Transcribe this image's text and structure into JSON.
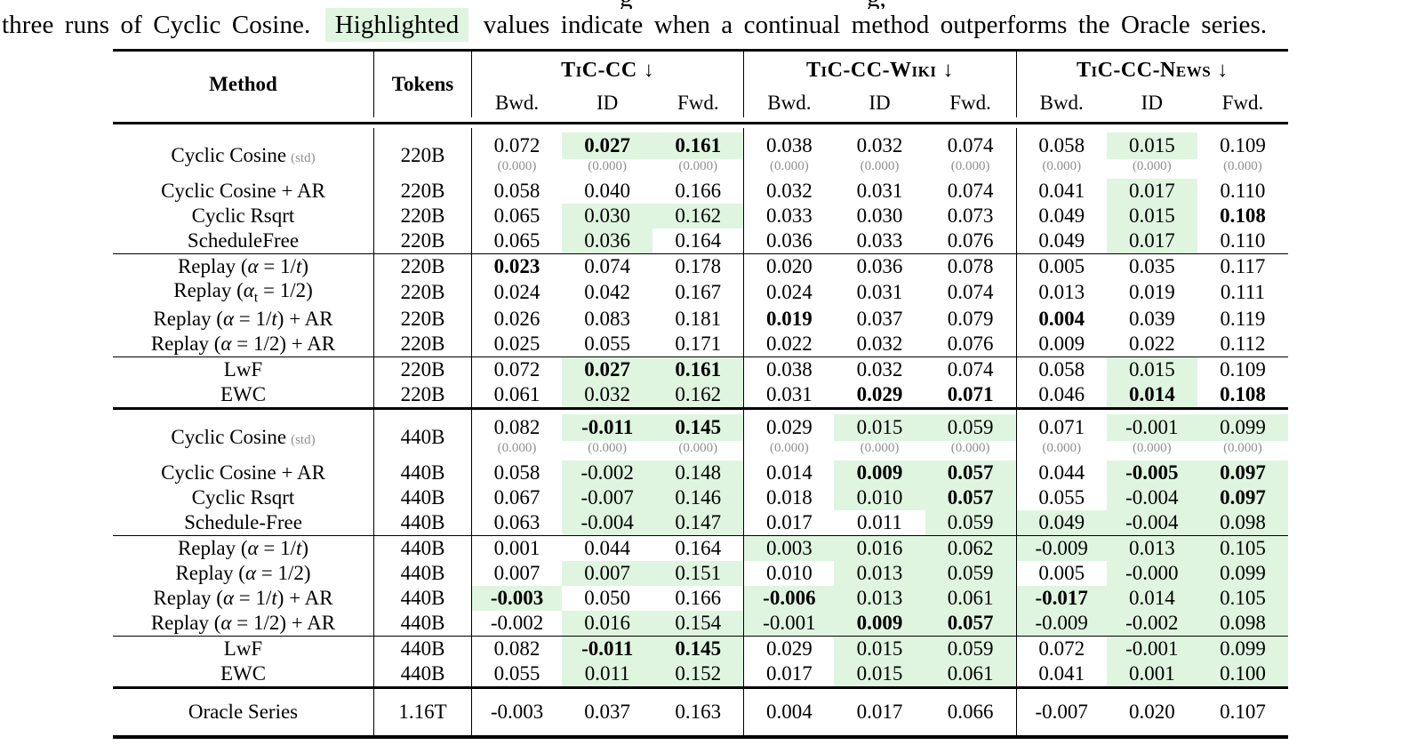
{
  "caption": {
    "clipped_fragments": [
      "g",
      "g,"
    ],
    "text_before": "three runs of Cyclic Cosine.",
    "highlight_word": "Highlighted",
    "text_after": "values indicate when a continual method outperforms the Oracle series."
  },
  "colors": {
    "highlight": "#dff5e0",
    "std_gray": "#8f8f8f"
  },
  "header": {
    "method": "Method",
    "tokens": "Tokens",
    "groups": [
      {
        "label": "TiC-CC",
        "arrow": "↓"
      },
      {
        "label": "TiC-CC-Wiki",
        "arrow": "↓"
      },
      {
        "label": "TiC-CC-News",
        "arrow": "↓"
      }
    ],
    "subcols": [
      "Bwd.",
      "ID",
      "Fwd.",
      "Bwd.",
      "ID",
      "Fwd.",
      "Bwd.",
      "ID",
      "Fwd."
    ]
  },
  "table": {
    "blocks": [
      {
        "rows": [
          {
            "method": "Cyclic Cosine",
            "note": "(std)",
            "tokens": "220B",
            "cells": [
              {
                "v": "0.072",
                "std": "(0.000)"
              },
              {
                "v": "0.027",
                "std": "(0.000)",
                "hl": true,
                "b": true
              },
              {
                "v": "0.161",
                "std": "(0.000)",
                "hl": true,
                "b": true
              },
              {
                "v": "0.038",
                "std": "(0.000)"
              },
              {
                "v": "0.032",
                "std": "(0.000)"
              },
              {
                "v": "0.074",
                "std": "(0.000)"
              },
              {
                "v": "0.058",
                "std": "(0.000)"
              },
              {
                "v": "0.015",
                "std": "(0.000)",
                "hl": true
              },
              {
                "v": "0.109",
                "std": "(0.000)"
              }
            ]
          },
          {
            "method": "Cyclic Cosine + AR",
            "tokens": "220B",
            "cells": [
              {
                "v": "0.058"
              },
              {
                "v": "0.040"
              },
              {
                "v": "0.166"
              },
              {
                "v": "0.032"
              },
              {
                "v": "0.031"
              },
              {
                "v": "0.074"
              },
              {
                "v": "0.041"
              },
              {
                "v": "0.017",
                "hl": true
              },
              {
                "v": "0.110"
              }
            ]
          },
          {
            "method": "Cyclic Rsqrt",
            "tokens": "220B",
            "cells": [
              {
                "v": "0.065"
              },
              {
                "v": "0.030",
                "hl": true
              },
              {
                "v": "0.162",
                "hl": true
              },
              {
                "v": "0.033"
              },
              {
                "v": "0.030"
              },
              {
                "v": "0.073"
              },
              {
                "v": "0.049"
              },
              {
                "v": "0.015",
                "hl": true
              },
              {
                "v": "0.108",
                "b": true
              }
            ]
          },
          {
            "method": "ScheduleFree",
            "tokens": "220B",
            "cells": [
              {
                "v": "0.065"
              },
              {
                "v": "0.036",
                "hl": true
              },
              {
                "v": "0.164"
              },
              {
                "v": "0.036"
              },
              {
                "v": "0.033"
              },
              {
                "v": "0.076"
              },
              {
                "v": "0.049"
              },
              {
                "v": "0.017",
                "hl": true
              },
              {
                "v": "0.110"
              }
            ]
          },
          {
            "method": "Replay (α = 1/t)",
            "tokens": "220B",
            "rule_above": true,
            "cells": [
              {
                "v": "0.023",
                "b": true
              },
              {
                "v": "0.074"
              },
              {
                "v": "0.178"
              },
              {
                "v": "0.020"
              },
              {
                "v": "0.036"
              },
              {
                "v": "0.078"
              },
              {
                "v": "0.005"
              },
              {
                "v": "0.035"
              },
              {
                "v": "0.117"
              }
            ]
          },
          {
            "method": "Replay (αₜ = 1/2)",
            "tokens": "220B",
            "cells": [
              {
                "v": "0.024"
              },
              {
                "v": "0.042"
              },
              {
                "v": "0.167"
              },
              {
                "v": "0.024"
              },
              {
                "v": "0.031"
              },
              {
                "v": "0.074"
              },
              {
                "v": "0.013"
              },
              {
                "v": "0.019"
              },
              {
                "v": "0.111"
              }
            ]
          },
          {
            "method": "Replay (α = 1/t) + AR",
            "tokens": "220B",
            "cells": [
              {
                "v": "0.026"
              },
              {
                "v": "0.083"
              },
              {
                "v": "0.181"
              },
              {
                "v": "0.019",
                "b": true
              },
              {
                "v": "0.037"
              },
              {
                "v": "0.079"
              },
              {
                "v": "0.004",
                "b": true
              },
              {
                "v": "0.039"
              },
              {
                "v": "0.119"
              }
            ]
          },
          {
            "method": "Replay (α = 1/2) + AR",
            "tokens": "220B",
            "cells": [
              {
                "v": "0.025"
              },
              {
                "v": "0.055"
              },
              {
                "v": "0.171"
              },
              {
                "v": "0.022"
              },
              {
                "v": "0.032"
              },
              {
                "v": "0.076"
              },
              {
                "v": "0.009"
              },
              {
                "v": "0.022"
              },
              {
                "v": "0.112"
              }
            ]
          },
          {
            "method": "LwF",
            "tokens": "220B",
            "rule_above": true,
            "cells": [
              {
                "v": "0.072"
              },
              {
                "v": "0.027",
                "hl": true,
                "b": true
              },
              {
                "v": "0.161",
                "hl": true,
                "b": true
              },
              {
                "v": "0.038"
              },
              {
                "v": "0.032"
              },
              {
                "v": "0.074"
              },
              {
                "v": "0.058"
              },
              {
                "v": "0.015",
                "hl": true
              },
              {
                "v": "0.109"
              }
            ]
          },
          {
            "method": "EWC",
            "tokens": "220B",
            "cells": [
              {
                "v": "0.061"
              },
              {
                "v": "0.032",
                "hl": true
              },
              {
                "v": "0.162",
                "hl": true
              },
              {
                "v": "0.031"
              },
              {
                "v": "0.029",
                "b": true
              },
              {
                "v": "0.071",
                "b": true
              },
              {
                "v": "0.046"
              },
              {
                "v": "0.014",
                "hl": true,
                "b": true
              },
              {
                "v": "0.108",
                "b": true
              }
            ]
          }
        ]
      },
      {
        "rows": [
          {
            "method": "Cyclic Cosine",
            "note": "(std)",
            "tokens": "440B",
            "cells": [
              {
                "v": "0.082",
                "std": "(0.000)"
              },
              {
                "v": "-0.011",
                "std": "(0.000)",
                "hl": true,
                "b": true
              },
              {
                "v": "0.145",
                "std": "(0.000)",
                "hl": true,
                "b": true
              },
              {
                "v": "0.029",
                "std": "(0.000)"
              },
              {
                "v": "0.015",
                "std": "(0.000)",
                "hl": true
              },
              {
                "v": "0.059",
                "std": "(0.000)",
                "hl": true
              },
              {
                "v": "0.071",
                "std": "(0.000)"
              },
              {
                "v": "-0.001",
                "std": "(0.000)",
                "hl": true
              },
              {
                "v": "0.099",
                "std": "(0.000)",
                "hl": true
              }
            ]
          },
          {
            "method": "Cyclic Cosine + AR",
            "tokens": "440B",
            "cells": [
              {
                "v": "0.058"
              },
              {
                "v": "-0.002",
                "hl": true
              },
              {
                "v": "0.148",
                "hl": true
              },
              {
                "v": "0.014"
              },
              {
                "v": "0.009",
                "hl": true,
                "b": true
              },
              {
                "v": "0.057",
                "hl": true,
                "b": true
              },
              {
                "v": "0.044"
              },
              {
                "v": "-0.005",
                "hl": true,
                "b": true
              },
              {
                "v": "0.097",
                "hl": true,
                "b": true
              }
            ]
          },
          {
            "method": "Cyclic Rsqrt",
            "tokens": "440B",
            "cells": [
              {
                "v": "0.067"
              },
              {
                "v": "-0.007",
                "hl": true
              },
              {
                "v": "0.146",
                "hl": true
              },
              {
                "v": "0.018"
              },
              {
                "v": "0.010",
                "hl": true
              },
              {
                "v": "0.057",
                "hl": true,
                "b": true
              },
              {
                "v": "0.055"
              },
              {
                "v": "-0.004",
                "hl": true
              },
              {
                "v": "0.097",
                "hl": true,
                "b": true
              }
            ]
          },
          {
            "method": "Schedule-Free",
            "tokens": "440B",
            "cells": [
              {
                "v": "0.063"
              },
              {
                "v": "-0.004",
                "hl": true
              },
              {
                "v": "0.147",
                "hl": true
              },
              {
                "v": "0.017"
              },
              {
                "v": "0.011"
              },
              {
                "v": "0.059",
                "hl": true
              },
              {
                "v": "0.049",
                "hl": true
              },
              {
                "v": "-0.004",
                "hl": true
              },
              {
                "v": "0.098",
                "hl": true
              }
            ]
          },
          {
            "method": "Replay (α = 1/t)",
            "tokens": "440B",
            "rule_above": true,
            "cells": [
              {
                "v": "0.001"
              },
              {
                "v": "0.044"
              },
              {
                "v": "0.164"
              },
              {
                "v": "0.003",
                "hl": true
              },
              {
                "v": "0.016",
                "hl": true
              },
              {
                "v": "0.062",
                "hl": true
              },
              {
                "v": "-0.009",
                "hl": true
              },
              {
                "v": "0.013",
                "hl": true
              },
              {
                "v": "0.105",
                "hl": true
              }
            ]
          },
          {
            "method": "Replay (α = 1/2)",
            "tokens": "440B",
            "cells": [
              {
                "v": "0.007"
              },
              {
                "v": "0.007",
                "hl": true
              },
              {
                "v": "0.151",
                "hl": true
              },
              {
                "v": "0.010"
              },
              {
                "v": "0.013",
                "hl": true
              },
              {
                "v": "0.059",
                "hl": true
              },
              {
                "v": "0.005"
              },
              {
                "v": "-0.000",
                "hl": true
              },
              {
                "v": "0.099",
                "hl": true
              }
            ]
          },
          {
            "method": "Replay (α = 1/t) + AR",
            "tokens": "440B",
            "cells": [
              {
                "v": "-0.003",
                "hl": true,
                "b": true
              },
              {
                "v": "0.050"
              },
              {
                "v": "0.166"
              },
              {
                "v": "-0.006",
                "hl": true,
                "b": true
              },
              {
                "v": "0.013",
                "hl": true
              },
              {
                "v": "0.061",
                "hl": true
              },
              {
                "v": "-0.017",
                "hl": true,
                "b": true
              },
              {
                "v": "0.014",
                "hl": true
              },
              {
                "v": "0.105",
                "hl": true
              }
            ]
          },
          {
            "method": "Replay (α = 1/2) + AR",
            "tokens": "440B",
            "cells": [
              {
                "v": "-0.002"
              },
              {
                "v": "0.016",
                "hl": true
              },
              {
                "v": "0.154",
                "hl": true
              },
              {
                "v": "-0.001",
                "hl": true
              },
              {
                "v": "0.009",
                "hl": true,
                "b": true
              },
              {
                "v": "0.057",
                "hl": true,
                "b": true
              },
              {
                "v": "-0.009",
                "hl": true
              },
              {
                "v": "-0.002",
                "hl": true
              },
              {
                "v": "0.098",
                "hl": true
              }
            ]
          },
          {
            "method": "LwF",
            "tokens": "440B",
            "rule_above": true,
            "cells": [
              {
                "v": "0.082"
              },
              {
                "v": "-0.011",
                "hl": true,
                "b": true
              },
              {
                "v": "0.145",
                "hl": true,
                "b": true
              },
              {
                "v": "0.029"
              },
              {
                "v": "0.015",
                "hl": true
              },
              {
                "v": "0.059",
                "hl": true
              },
              {
                "v": "0.072"
              },
              {
                "v": "-0.001",
                "hl": true
              },
              {
                "v": "0.099",
                "hl": true
              }
            ]
          },
          {
            "method": "EWC",
            "tokens": "440B",
            "cells": [
              {
                "v": "0.055"
              },
              {
                "v": "0.011",
                "hl": true
              },
              {
                "v": "0.152",
                "hl": true
              },
              {
                "v": "0.017"
              },
              {
                "v": "0.015",
                "hl": true
              },
              {
                "v": "0.061",
                "hl": true
              },
              {
                "v": "0.041"
              },
              {
                "v": "0.001",
                "hl": true
              },
              {
                "v": "0.100",
                "hl": true
              }
            ]
          }
        ]
      },
      {
        "tall": true,
        "rows": [
          {
            "method": "Oracle Series",
            "tokens": "1.16T",
            "cells": [
              {
                "v": "-0.003"
              },
              {
                "v": "0.037"
              },
              {
                "v": "0.163"
              },
              {
                "v": "0.004"
              },
              {
                "v": "0.017"
              },
              {
                "v": "0.066"
              },
              {
                "v": "-0.007"
              },
              {
                "v": "0.020"
              },
              {
                "v": "0.107"
              }
            ]
          }
        ]
      }
    ]
  }
}
